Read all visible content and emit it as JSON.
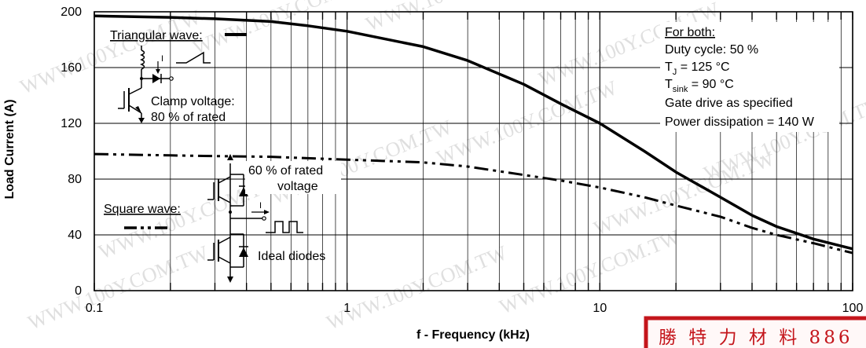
{
  "chart_data": {
    "type": "line",
    "xscale": "log",
    "xlim": [
      0.1,
      100
    ],
    "ylim": [
      0,
      200
    ],
    "xticks": [
      "0.1",
      "1",
      "10",
      "100"
    ],
    "yticks": [
      "0",
      "40",
      "80",
      "120",
      "160",
      "200"
    ],
    "xlabel": "f - Frequency (kHz)",
    "ylabel": "Load Current (A)",
    "grid": true,
    "series": [
      {
        "name": "Triangular wave:",
        "style": "solid",
        "color": "#000000",
        "x": [
          0.1,
          0.2,
          0.3,
          0.5,
          0.7,
          1,
          2,
          3,
          5,
          7,
          10,
          15,
          20,
          30,
          40,
          50,
          70,
          100
        ],
        "y": [
          197,
          196,
          195,
          193,
          190,
          186,
          175,
          165,
          148,
          134,
          120,
          100,
          85,
          67,
          54,
          46,
          37,
          30
        ]
      },
      {
        "name": "Square wave:",
        "style": "dash-dot-dot",
        "color": "#000000",
        "x": [
          0.1,
          0.2,
          0.3,
          0.5,
          0.7,
          1,
          2,
          3,
          5,
          7,
          10,
          15,
          20,
          30,
          40,
          50,
          70,
          100
        ],
        "y": [
          98,
          97,
          96.5,
          96,
          95,
          94,
          92,
          89,
          83,
          79,
          74,
          67,
          61,
          53,
          45,
          40,
          34,
          27
        ]
      }
    ],
    "annotations": {
      "triangular_label": "Triangular wave:",
      "clamp_line1": "Clamp voltage:",
      "clamp_line2": "80 % of rated",
      "current_symbol": "I",
      "square_label": "Square wave:",
      "rated_line1": "60 % of rated",
      "rated_line2": "voltage",
      "ideal_diodes": "Ideal diodes",
      "for_both": "For both:",
      "duty": "Duty cycle: 50 %",
      "tj_prefix": "T",
      "tj_sub": "J",
      "tj_value": " = 125 °C",
      "tsink_prefix": "T",
      "tsink_sub": "sink",
      "tsink_value": " = 90 °C",
      "gate": "Gate drive as specified",
      "power": "Power dissipation = 140 W"
    }
  },
  "watermark": {
    "text": "WWW.100Y.COM.TW",
    "color": "#b8b8b8"
  },
  "stamp": {
    "text": "勝 特 力 材 料 886",
    "color": "#c4161c"
  }
}
